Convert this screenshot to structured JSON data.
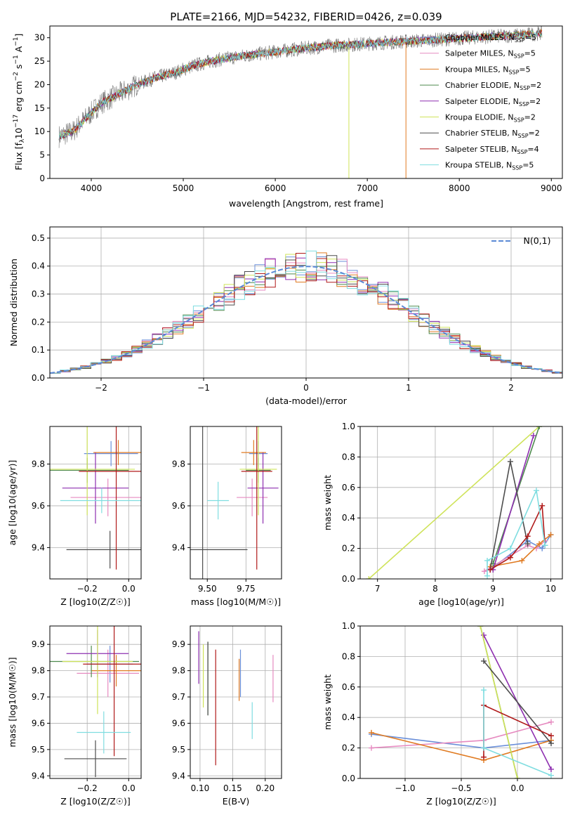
{
  "title": "PLATE=2166, MJD=54232, FIBERID=0426, z=0.039",
  "colors": {
    "Chabrier MILES": "#6a8fd9",
    "Salpeter MILES": "#e68ac0",
    "Kroupa MILES": "#e07b22",
    "Chabrier ELODIE": "#4e8a4e",
    "Salpeter ELODIE": "#8e2fb0",
    "Kroupa ELODIE": "#cfe35a",
    "Chabrier STELIB": "#4d4d4d",
    "Salpeter STELIB": "#b01a1a",
    "Kroupa STELIB": "#7fdde0"
  },
  "chart_data": [
    {
      "id": "spectrum",
      "type": "line",
      "title": "PLATE=2166, MJD=54232, FIBERID=0426, z=0.039",
      "xlabel": "wavelength [Angstrom, rest frame]",
      "ylabel": "Flux [f_λ 10^-17 erg cm^-2 s^-1 A^-1]",
      "xlim": [
        3550,
        9120
      ],
      "ylim": [
        0,
        32.5
      ],
      "xticks": [
        4000,
        5000,
        6000,
        7000,
        8000,
        9000
      ],
      "yticks": [
        0,
        5,
        10,
        15,
        20,
        25,
        30
      ],
      "legend_position": "top-right",
      "continuum": {
        "x": [
          3650,
          3800,
          3900,
          4000,
          4100,
          4300,
          4500,
          4700,
          4900,
          5100,
          5300,
          5500,
          5800,
          6000,
          6300,
          6600,
          6900,
          7200,
          7500,
          7800,
          8100,
          8400,
          8700,
          8900
        ],
        "y": [
          9,
          10,
          12,
          14,
          16,
          18,
          20,
          21.5,
          22.5,
          24,
          25,
          25.7,
          26.5,
          27,
          27.7,
          28.3,
          28.6,
          29,
          29.3,
          29.6,
          30,
          30.3,
          30.6,
          31
        ]
      },
      "series": [
        {
          "name": "Chabrier MILES, N_SSP=5",
          "color_key": "Chabrier MILES"
        },
        {
          "name": "Salpeter MILES, N_SSP=5",
          "color_key": "Salpeter MILES"
        },
        {
          "name": "Kroupa MILES, N_SSP=5",
          "color_key": "Kroupa MILES"
        },
        {
          "name": "Chabrier ELODIE, N_SSP=2",
          "color_key": "Chabrier ELODIE"
        },
        {
          "name": "Salpeter ELODIE, N_SSP=2",
          "color_key": "Salpeter ELODIE"
        },
        {
          "name": "Kroupa ELODIE, N_SSP=2",
          "color_key": "Kroupa ELODIE"
        },
        {
          "name": "Chabrier STELIB, N_SSP=2",
          "color_key": "Chabrier STELIB"
        },
        {
          "name": "Salpeter STELIB, N_SSP=4",
          "color_key": "Salpeter STELIB"
        },
        {
          "name": "Kroupa STELIB, N_SSP=5",
          "color_key": "Kroupa STELIB"
        }
      ]
    },
    {
      "id": "residuals",
      "type": "line",
      "xlabel": "(data-model)/error",
      "ylabel": "Normed distribution",
      "xlim": [
        -2.5,
        2.5
      ],
      "ylim": [
        0,
        0.54
      ],
      "xticks": [
        -2,
        -1,
        0,
        1,
        2
      ],
      "yticks": [
        0.0,
        0.1,
        0.2,
        0.3,
        0.4,
        0.5
      ],
      "legend": "N(0,1)",
      "legend_position": "top-right",
      "gaussian": {
        "mu": 0,
        "sigma": 1,
        "color": "#5b8ad6"
      },
      "bin_width": 0.1
    },
    {
      "id": "age-vs-Z",
      "type": "scatter",
      "xlabel": "Z [log10(Z/Z☉)]",
      "ylabel": "age [log10(age/yr)]",
      "xlim": [
        -0.38,
        0.06
      ],
      "ylim": [
        9.25,
        9.98
      ],
      "xticks": [
        -0.2,
        0.0
      ],
      "yticks": [
        9.4,
        9.6,
        9.8
      ],
      "points": [
        {
          "c": "Chabrier MILES",
          "x": -0.085,
          "xe": 0.13,
          "y": 9.85,
          "ye": 0.06
        },
        {
          "c": "Salpeter MILES",
          "x": -0.1,
          "xe": 0.18,
          "y": 9.64,
          "ye": 0.09
        },
        {
          "c": "Kroupa MILES",
          "x": -0.05,
          "xe": 0.12,
          "y": 9.855,
          "ye": 0.06
        },
        {
          "c": "Chabrier ELODIE",
          "x": -0.2,
          "xe": 0.2,
          "y": 9.77,
          "ye": 0.06
        },
        {
          "c": "Salpeter ELODIE",
          "x": -0.16,
          "xe": 0.16,
          "y": 9.685,
          "ye": 0.17
        },
        {
          "c": "Kroupa ELODIE",
          "x": -0.2,
          "xe": 0.23,
          "y": 9.775,
          "ye": 0.22
        },
        {
          "c": "Chabrier STELIB",
          "x": -0.09,
          "xe": 0.21,
          "y": 9.39,
          "ye": 0.09
        },
        {
          "c": "Salpeter STELIB",
          "x": -0.06,
          "xe": 0.18,
          "y": 9.765,
          "ye": 0.47
        },
        {
          "c": "Kroupa STELIB",
          "x": -0.13,
          "xe": 0.2,
          "y": 9.625,
          "ye": 0.06
        }
      ]
    },
    {
      "id": "age-vs-mass",
      "type": "scatter",
      "xlabel": "mass [log10(M/M☉)]",
      "ylabel": "",
      "xlim": [
        9.39,
        9.98
      ],
      "ylim": [
        9.25,
        9.98
      ],
      "xticks": [
        9.5,
        9.75
      ],
      "yticks": [
        9.4,
        9.6,
        9.8
      ],
      "points": [
        {
          "c": "Chabrier MILES",
          "x": 9.83,
          "xe": 0.06,
          "y": 9.85,
          "ye": 0.06
        },
        {
          "c": "Salpeter MILES",
          "x": 9.79,
          "xe": 0.1,
          "y": 9.64,
          "ye": 0.09
        },
        {
          "c": "Kroupa MILES",
          "x": 9.8,
          "xe": 0.08,
          "y": 9.855,
          "ye": 0.06
        },
        {
          "c": "Chabrier ELODIE",
          "x": 9.83,
          "xe": 0.08,
          "y": 9.77,
          "ye": 0.06
        },
        {
          "c": "Salpeter ELODIE",
          "x": 9.86,
          "xe": 0.1,
          "y": 9.685,
          "ye": 0.17
        },
        {
          "c": "Kroupa ELODIE",
          "x": 9.83,
          "xe": 0.12,
          "y": 9.775,
          "ye": 0.22
        },
        {
          "c": "Chabrier STELIB",
          "x": 9.47,
          "xe": 0.29,
          "y": 9.39,
          "ye": 0.65
        },
        {
          "c": "Salpeter STELIB",
          "x": 9.82,
          "xe": 0.1,
          "y": 9.765,
          "ye": 0.47
        },
        {
          "c": "Kroupa STELIB",
          "x": 9.57,
          "xe": 0.07,
          "y": 9.625,
          "ye": 0.09
        }
      ]
    },
    {
      "id": "weight-vs-age",
      "type": "line",
      "xlabel": "age [log10(age/yr)]",
      "ylabel": "mass weight",
      "xlim": [
        6.7,
        10.2
      ],
      "ylim": [
        0,
        1.0
      ],
      "xticks": [
        7,
        8,
        9,
        10
      ],
      "yticks": [
        0.0,
        0.2,
        0.4,
        0.6,
        0.8,
        1.0
      ],
      "series": [
        {
          "c": "Kroupa ELODIE",
          "x": [
            6.85,
            9.8
          ],
          "y": [
            0.0,
            1.0
          ]
        },
        {
          "c": "Chabrier MILES",
          "x": [
            8.95,
            9.6,
            9.85,
            10.0
          ],
          "y": [
            0.06,
            0.25,
            0.2,
            0.29
          ]
        },
        {
          "c": "Salpeter MILES",
          "x": [
            8.85,
            9.6,
            9.75,
            9.9
          ],
          "y": [
            0.05,
            0.22,
            0.2,
            0.25
          ]
        },
        {
          "c": "Kroupa MILES",
          "x": [
            8.95,
            9.5,
            9.8,
            10.0
          ],
          "y": [
            0.08,
            0.12,
            0.23,
            0.29
          ]
        },
        {
          "c": "Chabrier ELODIE",
          "x": [
            9.0,
            9.8
          ],
          "y": [
            0.1,
            1.0
          ]
        },
        {
          "c": "Salpeter ELODIE",
          "x": [
            9.0,
            9.7
          ],
          "y": [
            0.06,
            0.94
          ]
        },
        {
          "c": "Chabrier STELIB",
          "x": [
            8.95,
            9.3,
            9.6
          ],
          "y": [
            0.06,
            0.77,
            0.23
          ]
        },
        {
          "c": "Salpeter STELIB",
          "x": [
            8.95,
            9.3,
            9.6,
            9.85,
            9.9
          ],
          "y": [
            0.06,
            0.14,
            0.28,
            0.48,
            0.22
          ]
        },
        {
          "c": "Kroupa STELIB",
          "x": [
            8.9,
            8.9,
            9.3,
            9.75,
            9.9
          ],
          "y": [
            0.02,
            0.12,
            0.2,
            0.58,
            0.22
          ]
        }
      ]
    },
    {
      "id": "mass-vs-Z",
      "type": "scatter",
      "xlabel": "Z [log10(Z/Z☉)]",
      "ylabel": "mass [log10(M/M☉)]",
      "xlim": [
        -0.38,
        0.06
      ],
      "ylim": [
        9.39,
        9.97
      ],
      "xticks": [
        -0.2,
        0.0
      ],
      "yticks": [
        9.4,
        9.5,
        9.6,
        9.7,
        9.8,
        9.9
      ],
      "points": [
        {
          "c": "Chabrier MILES",
          "x": -0.09,
          "xe": 0.11,
          "y": 9.825,
          "ye": 0.07
        },
        {
          "c": "Salpeter MILES",
          "x": -0.1,
          "xe": 0.15,
          "y": 9.79,
          "ye": 0.09
        },
        {
          "c": "Kroupa MILES",
          "x": -0.06,
          "xe": 0.12,
          "y": 9.8,
          "ye": 0.06
        },
        {
          "c": "Chabrier ELODIE",
          "x": -0.18,
          "xe": 0.23,
          "y": 9.835,
          "ye": 0.06
        },
        {
          "c": "Salpeter ELODIE",
          "x": -0.15,
          "xe": 0.15,
          "y": 9.865,
          "ye": 0.09
        },
        {
          "c": "Kroupa ELODIE",
          "x": -0.15,
          "xe": 0.17,
          "y": 9.835,
          "ye": 0.2
        },
        {
          "c": "Chabrier STELIB",
          "x": -0.16,
          "xe": 0.15,
          "y": 9.465,
          "ye": 0.07
        },
        {
          "c": "Salpeter STELIB",
          "x": -0.07,
          "xe": 0.15,
          "y": 9.825,
          "ye": 0.35
        },
        {
          "c": "Kroupa STELIB",
          "x": -0.12,
          "xe": 0.13,
          "y": 9.565,
          "ye": 0.08
        }
      ]
    },
    {
      "id": "mass-vs-EBV",
      "type": "scatter",
      "xlabel": "E(B-V)",
      "ylabel": "",
      "xlim": [
        0.085,
        0.225
      ],
      "ylim": [
        9.39,
        9.97
      ],
      "xticks": [
        0.1,
        0.15,
        0.2
      ],
      "yticks": [
        9.4,
        9.5,
        9.6,
        9.7,
        9.8,
        9.9
      ],
      "points": [
        {
          "c": "Chabrier MILES",
          "x": 0.162,
          "y": 9.79,
          "ye": 0.09
        },
        {
          "c": "Salpeter MILES",
          "x": 0.212,
          "y": 9.77,
          "ye": 0.09
        },
        {
          "c": "Kroupa MILES",
          "x": 0.16,
          "y": 9.765,
          "ye": 0.08
        },
        {
          "c": "Chabrier ELODIE",
          "x": 0.112,
          "y": 9.77,
          "ye": 0.14
        },
        {
          "c": "Salpeter ELODIE",
          "x": 0.098,
          "y": 9.85,
          "ye": 0.1
        },
        {
          "c": "Kroupa ELODIE",
          "x": 0.105,
          "y": 9.78,
          "ye": 0.12
        },
        {
          "c": "Chabrier STELIB",
          "x": 0.112,
          "y": 9.77,
          "ye": 0.14
        },
        {
          "c": "Salpeter STELIB",
          "x": 0.124,
          "y": 9.66,
          "ye": 0.22
        },
        {
          "c": "Kroupa STELIB",
          "x": 0.18,
          "y": 9.61,
          "ye": 0.07
        }
      ]
    },
    {
      "id": "weight-vs-Z",
      "type": "line",
      "xlabel": "Z [log10(Z/Z☉)]",
      "ylabel": "mass weight",
      "xlim": [
        -1.4,
        0.4
      ],
      "ylim": [
        0,
        1.0
      ],
      "xticks": [
        -1.0,
        -0.5,
        0.0
      ],
      "yticks": [
        0.0,
        0.2,
        0.4,
        0.6,
        0.8,
        1.0
      ],
      "series": [
        {
          "c": "Chabrier MILES",
          "x": [
            -1.3,
            -0.3,
            0.3
          ],
          "y": [
            0.29,
            0.2,
            0.25
          ]
        },
        {
          "c": "Salpeter MILES",
          "x": [
            -1.3,
            -0.3,
            0.3
          ],
          "y": [
            0.2,
            0.25,
            0.37
          ]
        },
        {
          "c": "Kroupa MILES",
          "x": [
            -1.3,
            -0.3,
            0.3
          ],
          "y": [
            0.3,
            0.12,
            0.25
          ]
        },
        {
          "c": "Chabrier ELODIE",
          "x": [
            -0.33,
            0.0
          ],
          "y": [
            1.0,
            0.0
          ]
        },
        {
          "c": "Salpeter ELODIE",
          "x": [
            -0.3,
            0.3
          ],
          "y": [
            0.94,
            0.06
          ]
        },
        {
          "c": "Kroupa ELODIE",
          "x": [
            -0.33,
            0.0
          ],
          "y": [
            1.0,
            0.0
          ]
        },
        {
          "c": "Chabrier STELIB",
          "x": [
            -0.3,
            0.3
          ],
          "y": [
            0.77,
            0.23
          ]
        },
        {
          "c": "Salpeter STELIB",
          "x": [
            -0.3,
            -0.3,
            0.3
          ],
          "y": [
            0.14,
            0.48,
            0.28
          ]
        },
        {
          "c": "Kroupa STELIB",
          "x": [
            -0.3,
            -0.3,
            0.3
          ],
          "y": [
            0.58,
            0.2,
            0.02
          ]
        }
      ]
    }
  ]
}
